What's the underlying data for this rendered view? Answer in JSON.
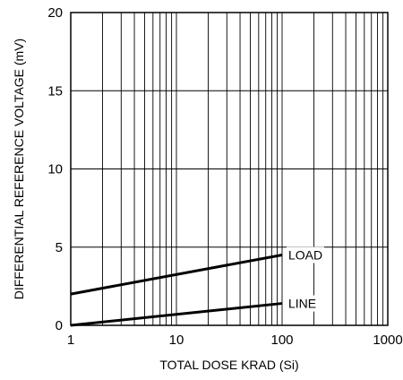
{
  "chart_data": {
    "type": "line",
    "xlabel": "TOTAL DOSE KRAD (Si)",
    "ylabel": "DIFFERENTIAL REFERENCE VOLTAGE (mV)",
    "xscale": "log",
    "xlim": [
      1,
      1000
    ],
    "ylim": [
      0,
      20
    ],
    "x_ticks": [
      1,
      10,
      100,
      1000
    ],
    "x_tick_labels": [
      "1",
      "10",
      "100",
      "1000"
    ],
    "y_ticks": [
      0,
      5,
      10,
      15,
      20
    ],
    "y_tick_labels": [
      "0",
      "5",
      "10",
      "15",
      "20"
    ],
    "grid": true,
    "series": [
      {
        "name": "LOAD",
        "x": [
          1,
          100
        ],
        "y": [
          2.0,
          4.5
        ]
      },
      {
        "name": "LINE",
        "x": [
          1,
          100
        ],
        "y": [
          0.0,
          1.4
        ]
      }
    ],
    "colors": {
      "axis": "#000000",
      "grid": "#000000",
      "line": "#000000"
    }
  }
}
